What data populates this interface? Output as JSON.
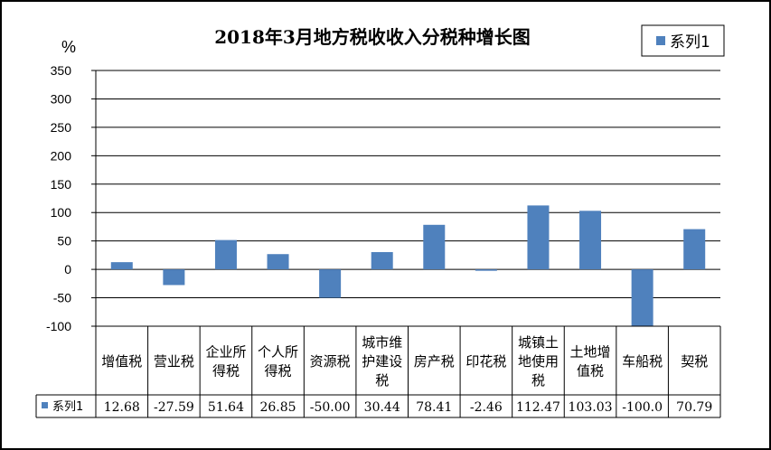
{
  "chart_data": {
    "type": "bar",
    "title": "2018年3月地方税收收入分税种增长图",
    "ylabel": "%",
    "ylim": [
      -100,
      350
    ],
    "yticks": [
      350,
      300,
      250,
      200,
      150,
      100,
      50,
      0,
      -50,
      -100
    ],
    "grid": true,
    "legend_position": "top-right",
    "categories": [
      [
        "增值税"
      ],
      [
        "营业税"
      ],
      [
        "企业所",
        "得税"
      ],
      [
        "个人所",
        "得税"
      ],
      [
        "资源税"
      ],
      [
        "城市维",
        "护建设",
        "税"
      ],
      [
        "房产税"
      ],
      [
        "印花税"
      ],
      [
        "城镇土",
        "地使用",
        "税"
      ],
      [
        "土地增",
        "值税"
      ],
      [
        "车船税"
      ],
      [
        "契税"
      ]
    ],
    "series": [
      {
        "name": "系列1",
        "color": "#4f81bd",
        "values": [
          12.68,
          -27.59,
          51.64,
          26.85,
          -50.0,
          30.44,
          78.41,
          -2.46,
          112.47,
          103.03,
          -100.0,
          70.79
        ],
        "labels": [
          "12.68",
          "-27.59",
          "51.64",
          "26.85",
          "-50.00",
          "30.44",
          "78.41",
          "-2.46",
          "112.47",
          "103.03",
          "-100.0",
          "70.79"
        ]
      }
    ],
    "data_table": true
  }
}
